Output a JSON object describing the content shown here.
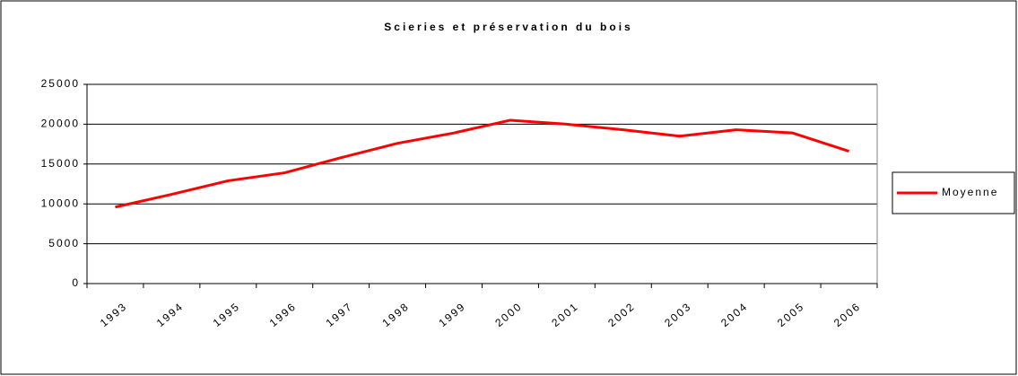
{
  "chart_data": {
    "type": "line",
    "title": "Scieries et préservation du bois",
    "categories": [
      "1993",
      "1994",
      "1995",
      "1996",
      "1997",
      "1998",
      "1999",
      "2000",
      "2001",
      "2002",
      "2003",
      "2004",
      "2005",
      "2006"
    ],
    "series": [
      {
        "name": "Moyenne",
        "color": "#ff0000",
        "values": [
          9600,
          11200,
          12900,
          13900,
          15800,
          17600,
          18900,
          20500,
          20000,
          19300,
          18500,
          19300,
          18900,
          16600
        ]
      }
    ],
    "ylim": [
      0,
      25000
    ],
    "yticks": [
      0,
      5000,
      10000,
      15000,
      20000,
      25000
    ],
    "grid": true,
    "legend": "right"
  }
}
